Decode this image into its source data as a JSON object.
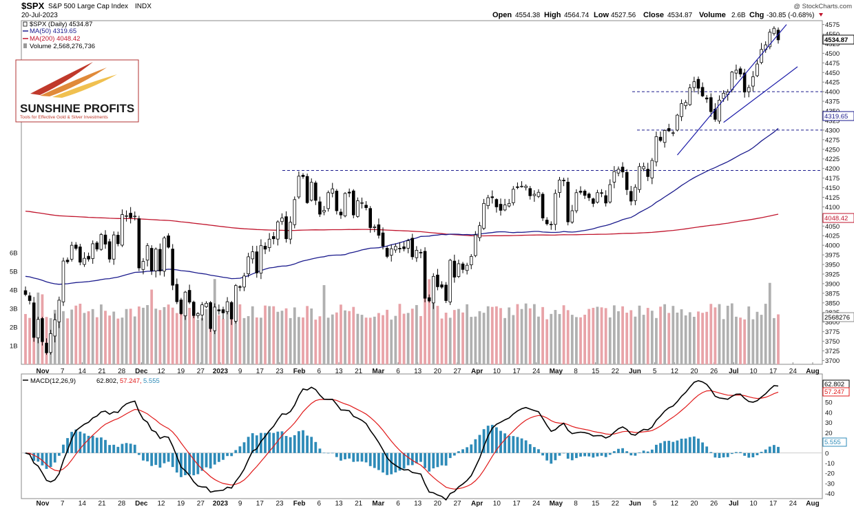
{
  "header": {
    "symbol": "$SPX",
    "name": "S&P 500 Large Cap Index",
    "exchange": "INDX",
    "date": "20-Jul-2023",
    "open_label": "Open",
    "open": "4554.38",
    "high_label": "High",
    "high": "4564.74",
    "low_label": "Low",
    "low": "4527.56",
    "close_label": "Close",
    "close": "4534.87",
    "volume_label": "Volume",
    "volume": "2.6B",
    "chg_label": "Chg",
    "chg": "-30.85 (-0.68%)",
    "watermark": "@ StockCharts.com"
  },
  "legend": {
    "price": "$SPX (Daily) 4534.87",
    "ma50": "MA(50) 4319.65",
    "ma200": "MA(200) 4048.42",
    "volume": "Volume 2,568,276,736",
    "macd_label": "MACD(12,26,9)",
    "macd_val": "62.802,",
    "macd_signal": "57.247,",
    "macd_hist": "5.555"
  },
  "logo": {
    "title": "SUNSHINE PROFITS",
    "tagline": "Tools for Effective Gold & Silver Investments"
  },
  "colors": {
    "up": "#ffffff",
    "down": "#000000",
    "ma50": "#1a1a8c",
    "ma200": "#c0142c",
    "vol_up": "#b0b0b0",
    "vol_down": "#e8a3a8",
    "hist": "#2e8bb8",
    "macd": "#000000",
    "signal": "#e01818",
    "trend": "#1a1aa8",
    "hline": "#1a1a8c",
    "tag_close": "#000000"
  },
  "chart_data": [
    {
      "type": "candlestick",
      "title": "$SPX S&P 500 Large Cap Index",
      "ylim": [
        3690,
        4585
      ],
      "y_ticks": [
        3700,
        3725,
        3750,
        3775,
        3800,
        3825,
        3850,
        3875,
        3900,
        3925,
        3950,
        3975,
        4000,
        4025,
        4050,
        4075,
        4100,
        4125,
        4150,
        4175,
        4200,
        4225,
        4250,
        4275,
        4300,
        4325,
        4350,
        4375,
        4400,
        4425,
        4450,
        4475,
        4500,
        4525,
        4550,
        4575
      ],
      "x_labels": [
        "Nov",
        "7",
        "14",
        "21",
        "28",
        "Dec",
        "12",
        "19",
        "27",
        "2023",
        "9",
        "17",
        "23",
        "Feb",
        "6",
        "13",
        "21",
        "Mar",
        "6",
        "13",
        "20",
        "27",
        "Apr",
        "10",
        "17",
        "24",
        "May",
        "8",
        "15",
        "22",
        "Jun",
        "5",
        "12",
        "20",
        "26",
        "Jul",
        "10",
        "17",
        "24",
        "Aug"
      ],
      "closes": [
        3872,
        3856,
        3760,
        3807,
        3749,
        3720,
        3770,
        3806,
        3857,
        3959,
        3957,
        4000,
        3992,
        3956,
        3966,
        3964,
        4004,
        3990,
        4028,
        4003,
        3964,
        4027,
        4004,
        4080,
        4077,
        4072,
        4076,
        3941,
        3958,
        3999,
        3934,
        3990,
        3933,
        4019,
        3995,
        3896,
        3853,
        3822,
        3878,
        3852,
        3817,
        3822,
        3845,
        3849,
        3783,
        3839,
        3829,
        3824,
        3853,
        3808,
        3895,
        3892,
        3920,
        3970,
        3983,
        3928,
        3999,
        3990,
        4016,
        4017,
        4061,
        4071,
        4017,
        4060,
        4119,
        4180,
        4179,
        4111,
        4164,
        4117,
        4081,
        4091,
        4137,
        4147,
        4090,
        4079,
        4135,
        4136,
        4079,
        4116,
        4111,
        4098,
        4046,
        4048,
        4026,
        3998,
        3971,
        3991,
        3997,
        3992,
        3991,
        4012,
        3970,
        3987,
        3981,
        3862,
        3855,
        3919,
        3892,
        3891,
        3856,
        3961,
        3917,
        3952,
        3937,
        3948,
        3971,
        4027,
        4051,
        4109,
        4124,
        4124,
        4100,
        4091,
        4105,
        4109,
        4146,
        4151,
        4154,
        4154,
        4129,
        4133,
        4138,
        4071,
        4056,
        4055,
        4135,
        4170,
        4168,
        4061,
        4090,
        4137,
        4138,
        4130,
        4124,
        4109,
        4137,
        4136,
        4110,
        4158,
        4192,
        4198,
        4191,
        4145,
        4115,
        4151,
        4205,
        4205,
        4179,
        4221,
        4283,
        4273,
        4299,
        4298,
        4293,
        4339,
        4369,
        4372,
        4410,
        4426,
        4409,
        4389,
        4381,
        4348,
        4328,
        4378,
        4396,
        4399,
        4451,
        4456,
        4446,
        4399,
        4411,
        4439,
        4472,
        4510,
        4522,
        4555,
        4565,
        4535
      ],
      "ma50_last": 4319.65,
      "ma200_last": 4048.42,
      "h_levels": [
        4195,
        4300,
        4400
      ],
      "last_close": 4534.87
    },
    {
      "type": "bar",
      "title": "Volume",
      "unit": "B",
      "y_ticks": [
        "1B",
        "2B",
        "3B",
        "4B",
        "5B",
        "6B"
      ],
      "last_value": 2568276736
    },
    {
      "type": "line",
      "title": "MACD(12,26,9)",
      "series": [
        {
          "name": "MACD(12,26,9)",
          "last": 62.802
        },
        {
          "name": "Signal",
          "last": 57.247
        },
        {
          "name": "Histogram",
          "last": 5.555
        }
      ],
      "ylim": [
        -45,
        78
      ],
      "y_ticks": [
        -40,
        -30,
        -20,
        -10,
        0,
        10,
        20,
        30,
        40,
        50,
        60,
        70
      ],
      "x_labels": [
        "Nov",
        "7",
        "14",
        "21",
        "28",
        "Dec",
        "12",
        "19",
        "27",
        "2023",
        "9",
        "17",
        "23",
        "Feb",
        "6",
        "13",
        "21",
        "Mar",
        "6",
        "13",
        "20",
        "27",
        "Apr",
        "10",
        "17",
        "24",
        "May",
        "8",
        "15",
        "22",
        "Jun",
        "5",
        "12",
        "20",
        "26",
        "Jul",
        "10",
        "17",
        "24",
        "Aug"
      ]
    }
  ],
  "tags": {
    "close": "4534.87",
    "ma50": "4319.65",
    "ma200": "4048.42",
    "volume": "2568276",
    "macd": "62.802",
    "signal": "57.247",
    "hist": "5.555"
  }
}
